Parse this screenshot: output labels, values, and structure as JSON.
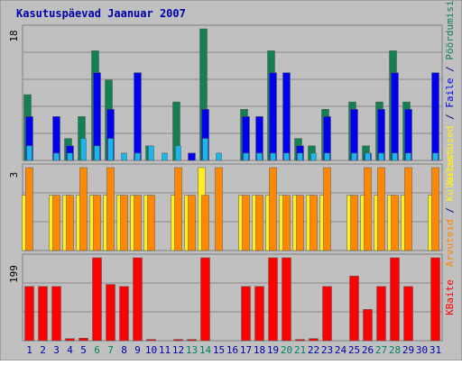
{
  "chart_data": [
    {
      "type": "bar",
      "title": "Kasutuspäevad Jaanuar 2007",
      "categories": [
        "1",
        "2",
        "3",
        "4",
        "5",
        "6",
        "7",
        "8",
        "9",
        "10",
        "11",
        "12",
        "13",
        "14",
        "15",
        "16",
        "17",
        "18",
        "19",
        "20",
        "21",
        "22",
        "23",
        "24",
        "25",
        "26",
        "27",
        "28",
        "29",
        "30",
        "31"
      ],
      "weekend_days": [
        "6",
        "7",
        "13",
        "14",
        "20",
        "21",
        "27",
        "28"
      ],
      "ylim": [
        0,
        18
      ],
      "ytick_label": "18",
      "legend_labels": [
        "Külastused",
        "Faile",
        "Pöördumisi"
      ],
      "legend_separator": " / ",
      "series": [
        {
          "name": "Pöördumisi",
          "color": "#128050",
          "values": [
            9,
            0,
            0,
            3,
            6,
            15,
            11,
            0,
            0,
            2,
            0,
            8,
            0,
            18,
            0,
            0,
            7,
            0,
            15,
            0,
            3,
            2,
            7,
            0,
            8,
            2,
            8,
            15,
            8,
            0,
            0
          ]
        },
        {
          "name": "Faile",
          "color": "#0000ee",
          "values": [
            6,
            0,
            6,
            2,
            0,
            12,
            7,
            0,
            12,
            0,
            0,
            0,
            1,
            7,
            0,
            0,
            6,
            6,
            12,
            12,
            2,
            0,
            6,
            0,
            7,
            1,
            7,
            12,
            7,
            0,
            12
          ]
        },
        {
          "name": "Külastused",
          "color": "#1ab6ee",
          "values": [
            2,
            0,
            1,
            1,
            3,
            2,
            3,
            1,
            1,
            2,
            1,
            2,
            0,
            3,
            1,
            0,
            1,
            1,
            1,
            1,
            1,
            1,
            1,
            0,
            1,
            1,
            1,
            1,
            1,
            0,
            1
          ]
        }
      ]
    },
    {
      "type": "bar",
      "categories": [
        "1",
        "2",
        "3",
        "4",
        "5",
        "6",
        "7",
        "8",
        "9",
        "10",
        "11",
        "12",
        "13",
        "14",
        "15",
        "16",
        "17",
        "18",
        "19",
        "20",
        "21",
        "22",
        "23",
        "24",
        "25",
        "26",
        "27",
        "28",
        "29",
        "30",
        "31"
      ],
      "ylim": [
        0,
        3
      ],
      "ytick_label": "3",
      "legend_labels": [
        "Arvuteid",
        "Külastusi"
      ],
      "legend_separator": " / ",
      "series": [
        {
          "name": "Külastusi",
          "color": "#ffee22",
          "values": [
            2,
            0,
            2,
            2,
            2,
            2,
            2,
            2,
            2,
            2,
            0,
            2,
            2,
            3,
            0,
            0,
            2,
            2,
            2,
            2,
            2,
            2,
            2,
            0,
            2,
            2,
            2,
            2,
            2,
            0,
            2
          ]
        },
        {
          "name": "Arvuteid",
          "color": "#ff8800",
          "values": [
            3,
            0,
            2,
            2,
            3,
            2,
            3,
            2,
            2,
            2,
            0,
            3,
            2,
            2,
            3,
            0,
            2,
            2,
            3,
            2,
            2,
            2,
            3,
            0,
            2,
            3,
            3,
            2,
            3,
            0,
            3
          ]
        }
      ]
    },
    {
      "type": "bar",
      "categories": [
        "1",
        "2",
        "3",
        "4",
        "5",
        "6",
        "7",
        "8",
        "9",
        "10",
        "11",
        "12",
        "13",
        "14",
        "15",
        "16",
        "17",
        "18",
        "19",
        "20",
        "21",
        "22",
        "23",
        "24",
        "25",
        "26",
        "27",
        "28",
        "29",
        "30",
        "31"
      ],
      "ylim": [
        0,
        199
      ],
      "ytick_label": "199",
      "legend_labels": [
        "KBaite"
      ],
      "legend_separator": "",
      "series": [
        {
          "name": "KBaite",
          "color": "#ff0000",
          "values": [
            130,
            130,
            130,
            5,
            6,
            199,
            135,
            130,
            199,
            3,
            0,
            3,
            3,
            199,
            0,
            0,
            130,
            130,
            199,
            199,
            3,
            5,
            130,
            0,
            155,
            75,
            130,
            199,
            130,
            0,
            199
          ]
        }
      ]
    }
  ],
  "colors": {
    "background": "#c0c0c0",
    "frame_outer": "#ffffff",
    "grid": "#808080",
    "weekday_label": "#0000aa",
    "weekend_label": "#008060"
  }
}
